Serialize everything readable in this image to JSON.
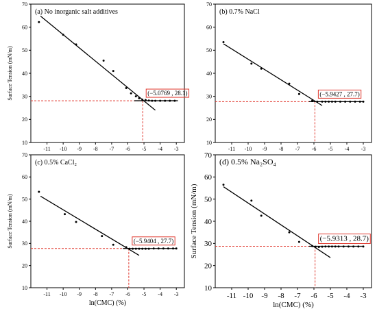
{
  "colors": {
    "axis": "#000000",
    "data": "#000000",
    "reference": "#e0382e",
    "background": "#ffffff"
  },
  "chart_data": [
    {
      "type": "scatter",
      "title": "(a) No inorganic salt additives",
      "xlabel": "",
      "ylabel": "Surface Tension (mN/m)",
      "xlim": [
        -12,
        -2.5
      ],
      "ylim": [
        10,
        70
      ],
      "xticks": [
        -11,
        -10,
        -9,
        -8,
        -7,
        -6,
        -5,
        -4,
        -3
      ],
      "yticks": [
        10,
        20,
        30,
        40,
        50,
        60,
        70
      ],
      "points": [
        [
          -11.5,
          62.2
        ],
        [
          -10,
          56.7
        ],
        [
          -9.2,
          52.5
        ],
        [
          -7.5,
          45.5
        ],
        [
          -6.9,
          41
        ],
        [
          -6.1,
          33.6
        ],
        [
          -5.8,
          31.3
        ],
        [
          -5.5,
          30
        ],
        [
          -5.3,
          29.2
        ],
        [
          -5.1,
          28.6
        ],
        [
          -4.9,
          28.4
        ],
        [
          -4.7,
          28.2
        ],
        [
          -4.5,
          28.1
        ],
        [
          -4.3,
          28.1
        ],
        [
          -4.0,
          28.1
        ],
        [
          -3.7,
          28.1
        ],
        [
          -3.4,
          28.1
        ],
        [
          -3.1,
          28.1
        ]
      ],
      "fit_lines": [
        [
          [
            -11.4,
            64.8
          ],
          [
            -4.3,
            24.0
          ]
        ],
        [
          [
            -5.6,
            28.1
          ],
          [
            -2.9,
            28.1
          ]
        ]
      ],
      "intersection": {
        "x": -5.0769,
        "y": 28.1,
        "label": "(−5.0769 , 28.1)"
      }
    },
    {
      "type": "scatter",
      "title": "(b) 0.7% NaCl",
      "xlabel": "",
      "ylabel": "",
      "xlim": [
        -12,
        -2.5
      ],
      "ylim": [
        10,
        70
      ],
      "xticks": [
        -11,
        -10,
        -9,
        -8,
        -7,
        -6,
        -5,
        -4,
        -3
      ],
      "yticks": [
        10,
        20,
        30,
        40,
        50,
        60,
        70
      ],
      "points": [
        [
          -11.5,
          53.5
        ],
        [
          -9.8,
          44.2
        ],
        [
          -9.2,
          42
        ],
        [
          -7.5,
          35.5
        ],
        [
          -6.9,
          31
        ],
        [
          -6.1,
          28.2
        ],
        [
          -5.8,
          27.7
        ],
        [
          -5.5,
          27.7
        ],
        [
          -5.3,
          27.7
        ],
        [
          -5.1,
          27.7
        ],
        [
          -4.9,
          27.7
        ],
        [
          -4.7,
          27.7
        ],
        [
          -4.4,
          27.7
        ],
        [
          -4.1,
          27.7
        ],
        [
          -3.8,
          27.7
        ],
        [
          -3.5,
          27.7
        ],
        [
          -3.2,
          27.7
        ],
        [
          -3.0,
          27.7
        ]
      ],
      "fit_lines": [
        [
          [
            -11.5,
            52.8
          ],
          [
            -5.5,
            26.0
          ]
        ],
        [
          [
            -6.3,
            27.7
          ],
          [
            -3.0,
            27.7
          ]
        ]
      ],
      "intersection": {
        "x": -5.9427,
        "y": 27.7,
        "label": "(−5.9427 , 27.7)"
      }
    },
    {
      "type": "scatter",
      "title": "(c) 0.5% CaCl₂",
      "xlabel": "ln(CMC) (%)",
      "ylabel": "Surface Tension (mN/m)",
      "xlim": [
        -12,
        -2.5
      ],
      "ylim": [
        10,
        70
      ],
      "xticks": [
        -11,
        -10,
        -9,
        -8,
        -7,
        -6,
        -5,
        -4,
        -3
      ],
      "yticks": [
        10,
        20,
        30,
        40,
        50,
        60,
        70
      ],
      "points": [
        [
          -11.5,
          53.3
        ],
        [
          -9.9,
          43.2
        ],
        [
          -9.2,
          39.7
        ],
        [
          -7.6,
          33.3
        ],
        [
          -6.9,
          29.4
        ],
        [
          -6.1,
          28.3
        ],
        [
          -5.9,
          27.6
        ],
        [
          -5.7,
          27.6
        ],
        [
          -5.5,
          27.6
        ],
        [
          -5.3,
          27.6
        ],
        [
          -5.1,
          27.6
        ],
        [
          -4.9,
          27.6
        ],
        [
          -4.7,
          27.6
        ],
        [
          -4.4,
          27.7
        ],
        [
          -4.1,
          27.7
        ],
        [
          -3.8,
          27.7
        ],
        [
          -3.5,
          27.7
        ],
        [
          -3.2,
          27.7
        ],
        [
          -3.0,
          27.7
        ]
      ],
      "fit_lines": [
        [
          [
            -11.4,
            51.3
          ],
          [
            -5.3,
            24.6
          ]
        ],
        [
          [
            -6.3,
            27.7
          ],
          [
            -3.0,
            27.7
          ]
        ]
      ],
      "intersection": {
        "x": -5.9404,
        "y": 27.7,
        "label": "(−5.9404 , 27.7)"
      }
    },
    {
      "type": "scatter",
      "title": "(d) 0.5% Na₂SO₄",
      "xlabel": "ln(CMC) (%)",
      "ylabel": "Surface Tension (mN/m)",
      "xlim": [
        -12,
        -2.5
      ],
      "ylim": [
        10,
        70
      ],
      "xticks": [
        -11,
        -10,
        -9,
        -8,
        -7,
        -6,
        -5,
        -4,
        -3
      ],
      "yticks": [
        10,
        20,
        30,
        40,
        50,
        60,
        70
      ],
      "points": [
        [
          -11.5,
          56.5
        ],
        [
          -9.8,
          49.3
        ],
        [
          -9.2,
          42.5
        ],
        [
          -7.5,
          35
        ],
        [
          -6.9,
          30.7
        ],
        [
          -6.1,
          28.8
        ],
        [
          -5.9,
          28.5
        ],
        [
          -5.7,
          28.4
        ],
        [
          -5.5,
          28.5
        ],
        [
          -5.3,
          28.6
        ],
        [
          -5.1,
          28.6
        ],
        [
          -4.9,
          28.6
        ],
        [
          -4.7,
          28.6
        ],
        [
          -4.5,
          28.6
        ],
        [
          -4.2,
          28.6
        ],
        [
          -3.9,
          28.6
        ],
        [
          -3.6,
          28.6
        ],
        [
          -3.3,
          28.6
        ],
        [
          -3.0,
          28.6
        ]
      ],
      "fit_lines": [
        [
          [
            -11.5,
            55.6
          ],
          [
            -5.0,
            23.6
          ]
        ],
        [
          [
            -6.3,
            28.7
          ],
          [
            -3.0,
            28.7
          ]
        ]
      ],
      "intersection": {
        "x": -5.9313,
        "y": 28.7,
        "label": "(−5.9313 , 28.7)"
      }
    }
  ]
}
